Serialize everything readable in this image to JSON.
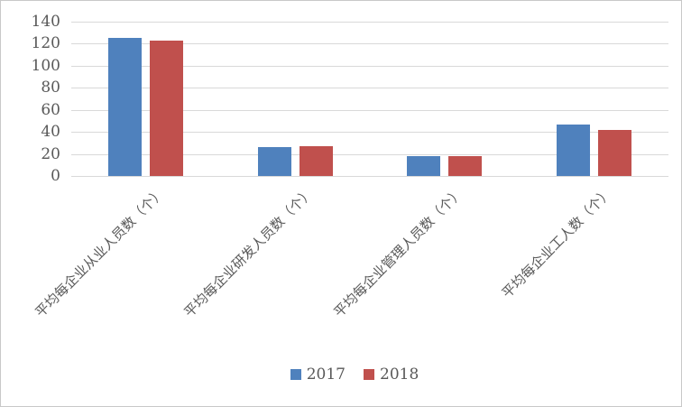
{
  "chart_data": {
    "type": "bar",
    "title": "",
    "xlabel": "",
    "ylabel": "",
    "categories": [
      "平均每企业从业人员数（个）",
      "平均每企业研发人员数（个）",
      "平均每企业管理人员数（个）",
      "平均每企业工人数（个）"
    ],
    "series": [
      {
        "name": "2017",
        "color": "#4F81BD",
        "values": [
          125,
          26,
          18,
          47
        ]
      },
      {
        "name": "2018",
        "color": "#C0504D",
        "values": [
          123,
          27,
          18,
          42
        ]
      }
    ],
    "ylim": [
      0,
      140
    ],
    "ytick_step": 20,
    "ytick_labels": [
      "0",
      "20",
      "40",
      "60",
      "80",
      "100",
      "120",
      "140"
    ],
    "grid": true,
    "legend_position": "bottom"
  },
  "colors": {
    "gridline": "#D9D9D9",
    "axis_text": "#595959",
    "border": "#C9C9C9",
    "background": "#FFFFFF"
  }
}
